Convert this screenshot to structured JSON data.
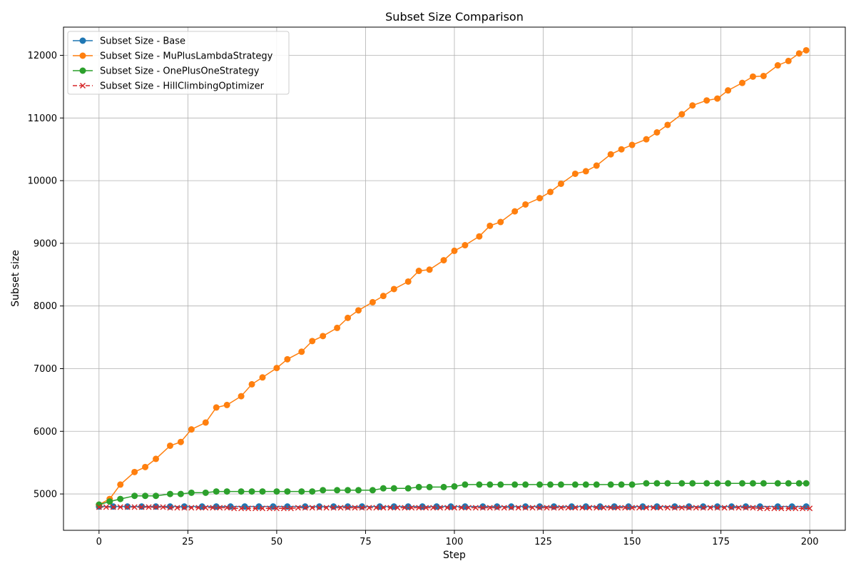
{
  "chart_data": {
    "type": "line",
    "title": "Subset Size Comparison",
    "xlabel": "Step",
    "ylabel": "Subset size",
    "xlim": [
      -10,
      210
    ],
    "ylim": [
      4420,
      12450
    ],
    "xticks": [
      0,
      25,
      50,
      75,
      100,
      125,
      150,
      175,
      200
    ],
    "yticks": [
      5000,
      6000,
      7000,
      8000,
      9000,
      10000,
      11000,
      12000
    ],
    "grid": true,
    "legend_position": "upper left",
    "series": [
      {
        "name": "Subset Size - Base",
        "color": "#1f77b4",
        "marker": "circle",
        "dashed": false,
        "x": [
          0,
          4,
          8,
          12,
          16,
          20,
          24,
          29,
          33,
          37,
          41,
          45,
          49,
          53,
          58,
          62,
          66,
          70,
          74,
          79,
          83,
          87,
          91,
          95,
          99,
          103,
          108,
          112,
          116,
          120,
          124,
          128,
          133,
          137,
          141,
          145,
          149,
          153,
          157,
          162,
          166,
          170,
          174,
          178,
          182,
          186,
          191,
          195,
          199
        ],
        "y": [
          4800,
          4800,
          4800,
          4800,
          4800,
          4800,
          4800,
          4800,
          4800,
          4800,
          4800,
          4800,
          4800,
          4800,
          4800,
          4800,
          4800,
          4800,
          4800,
          4800,
          4800,
          4800,
          4800,
          4800,
          4800,
          4800,
          4800,
          4800,
          4800,
          4800,
          4800,
          4800,
          4800,
          4800,
          4800,
          4800,
          4800,
          4800,
          4800,
          4800,
          4800,
          4800,
          4800,
          4800,
          4800,
          4800,
          4800,
          4800,
          4800
        ]
      },
      {
        "name": "Subset Size - MuPlusLambdaStrategy",
        "color": "#ff7f0e",
        "marker": "circle",
        "dashed": false,
        "x": [
          0,
          3,
          6,
          10,
          13,
          16,
          20,
          23,
          26,
          30,
          33,
          36,
          40,
          43,
          46,
          50,
          53,
          57,
          60,
          63,
          67,
          70,
          73,
          77,
          80,
          83,
          87,
          90,
          93,
          97,
          100,
          103,
          107,
          110,
          113,
          117,
          120,
          124,
          127,
          130,
          134,
          137,
          140,
          144,
          147,
          150,
          154,
          157,
          160,
          164,
          167,
          171,
          174,
          177,
          181,
          184,
          187,
          191,
          194,
          197,
          199
        ],
        "y": [
          4830,
          4920,
          5150,
          5350,
          5430,
          5560,
          5770,
          5830,
          6030,
          6140,
          6380,
          6420,
          6560,
          6750,
          6860,
          7010,
          7150,
          7270,
          7440,
          7520,
          7650,
          7810,
          7930,
          8060,
          8160,
          8270,
          8390,
          8560,
          8580,
          8730,
          8880,
          8970,
          9110,
          9280,
          9340,
          9510,
          9620,
          9720,
          9820,
          9950,
          10110,
          10150,
          10240,
          10420,
          10500,
          10570,
          10660,
          10770,
          10890,
          11060,
          11200,
          11280,
          11310,
          11440,
          11560,
          11660,
          11670,
          11840,
          11910,
          12030,
          12080
        ]
      },
      {
        "name": "Subset Size - OnePlusOneStrategy",
        "color": "#2ca02c",
        "marker": "circle",
        "dashed": false,
        "x": [
          0,
          3,
          6,
          10,
          13,
          16,
          20,
          23,
          26,
          30,
          33,
          36,
          40,
          43,
          46,
          50,
          53,
          57,
          60,
          63,
          67,
          70,
          73,
          77,
          80,
          83,
          87,
          90,
          93,
          97,
          100,
          103,
          107,
          110,
          113,
          117,
          120,
          124,
          127,
          130,
          134,
          137,
          140,
          144,
          147,
          150,
          154,
          157,
          160,
          164,
          167,
          171,
          174,
          177,
          181,
          184,
          187,
          191,
          194,
          197,
          199
        ],
        "y": [
          4830,
          4880,
          4920,
          4970,
          4970,
          4970,
          5000,
          5000,
          5020,
          5020,
          5040,
          5040,
          5040,
          5040,
          5040,
          5040,
          5040,
          5040,
          5040,
          5060,
          5060,
          5060,
          5060,
          5060,
          5090,
          5090,
          5090,
          5110,
          5110,
          5110,
          5120,
          5150,
          5150,
          5150,
          5150,
          5150,
          5150,
          5150,
          5150,
          5150,
          5150,
          5150,
          5150,
          5150,
          5150,
          5150,
          5170,
          5170,
          5170,
          5170,
          5170,
          5170,
          5170,
          5170,
          5170,
          5170,
          5170,
          5170,
          5170,
          5170,
          5170
        ]
      },
      {
        "name": "Subset Size - HillClimbingOptimizer",
        "color": "#d62728",
        "marker": "x",
        "dashed": true,
        "x": [
          0,
          2,
          4,
          6,
          8,
          10,
          12,
          14,
          16,
          18,
          20,
          22,
          24,
          26,
          28,
          30,
          32,
          34,
          36,
          38,
          40,
          42,
          44,
          46,
          48,
          50,
          52,
          54,
          56,
          58,
          60,
          62,
          64,
          66,
          68,
          70,
          72,
          74,
          76,
          78,
          80,
          82,
          84,
          86,
          88,
          90,
          92,
          94,
          96,
          98,
          100,
          102,
          104,
          106,
          108,
          110,
          112,
          114,
          116,
          118,
          120,
          122,
          124,
          126,
          128,
          130,
          132,
          134,
          136,
          138,
          140,
          142,
          144,
          146,
          148,
          150,
          152,
          154,
          156,
          158,
          160,
          162,
          164,
          166,
          168,
          170,
          172,
          174,
          176,
          178,
          180,
          182,
          184,
          186,
          188,
          190,
          192,
          194,
          196,
          198,
          200
        ],
        "y": [
          4790,
          4790,
          4790,
          4790,
          4790,
          4790,
          4790,
          4790,
          4790,
          4790,
          4780,
          4780,
          4780,
          4780,
          4780,
          4780,
          4780,
          4780,
          4780,
          4770,
          4770,
          4770,
          4770,
          4770,
          4770,
          4770,
          4770,
          4770,
          4780,
          4780,
          4780,
          4780,
          4780,
          4780,
          4780,
          4780,
          4780,
          4780,
          4780,
          4780,
          4780,
          4780,
          4780,
          4780,
          4780,
          4780,
          4780,
          4780,
          4780,
          4780,
          4780,
          4780,
          4780,
          4780,
          4780,
          4780,
          4780,
          4780,
          4780,
          4780,
          4780,
          4780,
          4780,
          4780,
          4780,
          4780,
          4780,
          4780,
          4780,
          4780,
          4780,
          4780,
          4780,
          4780,
          4780,
          4780,
          4780,
          4780,
          4780,
          4780,
          4780,
          4780,
          4780,
          4780,
          4780,
          4780,
          4780,
          4780,
          4780,
          4780,
          4780,
          4780,
          4780,
          4770,
          4770,
          4770,
          4770,
          4770,
          4770,
          4770,
          4770
        ]
      }
    ]
  }
}
